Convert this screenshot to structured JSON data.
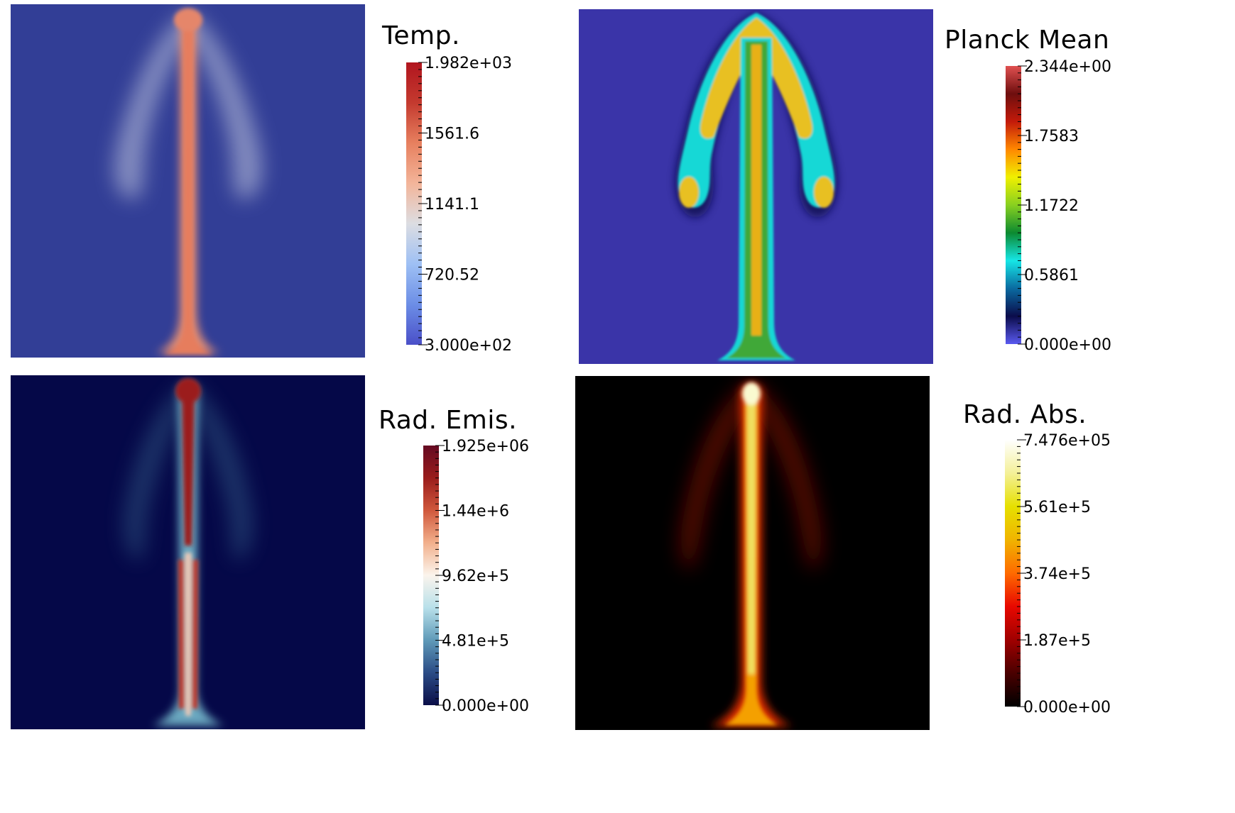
{
  "panels": [
    {
      "id": "temperature",
      "title": "Temp.",
      "labels": [
        "1.982e+03",
        "1561.6",
        "1141.1",
        "720.52",
        "3.000e+02"
      ],
      "colormap": [
        "#4a4fc8",
        "#6c8ee6",
        "#9ec0f4",
        "#dcdde2",
        "#f3b59a",
        "#e7805f",
        "#c43a2f",
        "#b1151e"
      ],
      "background_color": "#323e96"
    },
    {
      "id": "planck-mean",
      "title": "Planck Mean",
      "labels": [
        "2.344e+00",
        "1.7583",
        "1.1722",
        "0.5861",
        "0.000e+00"
      ],
      "colormap": [
        "#5a5af0",
        "#0b0c4b",
        "#0a6aa0",
        "#16e6e6",
        "#0c8a30",
        "#88d020",
        "#f0f000",
        "#ff8800",
        "#c31a0a",
        "#6e0e0e",
        "#e05050"
      ],
      "background_color": "#3a34a8"
    },
    {
      "id": "rad-emission",
      "title": "Rad. Emis.",
      "labels": [
        "1.925e+06",
        "1.44e+6",
        "9.62e+5",
        "4.81e+5",
        "0.000e+00"
      ],
      "colormap": [
        "#0b0e48",
        "#2b4c86",
        "#5f9ab8",
        "#b8e0ea",
        "#fbf4ec",
        "#f2b08c",
        "#d0583c",
        "#9a1c1c",
        "#650a22"
      ],
      "background_color": "#050848"
    },
    {
      "id": "rad-absorption",
      "title": "Rad. Abs.",
      "labels": [
        "7.476e+05",
        "5.61e+5",
        "3.74e+5",
        "1.87e+5",
        "0.000e+00"
      ],
      "colormap": [
        "#000000",
        "#4a0000",
        "#a00000",
        "#e80800",
        "#ff6a00",
        "#f0b400",
        "#e6e000",
        "#f4f098",
        "#ffffff"
      ],
      "background_color": "#000000"
    }
  ]
}
